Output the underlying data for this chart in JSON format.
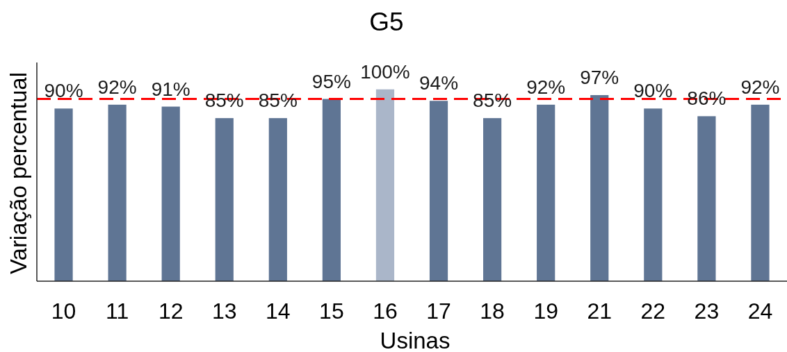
{
  "chart_data": {
    "type": "bar",
    "title": "G5",
    "xlabel": "Usinas",
    "ylabel": "Variação percentual",
    "categories": [
      "10",
      "11",
      "12",
      "13",
      "14",
      "15",
      "16",
      "17",
      "18",
      "19",
      "21",
      "22",
      "23",
      "24"
    ],
    "values": [
      90,
      92,
      91,
      85,
      85,
      95,
      100,
      94,
      85,
      92,
      97,
      90,
      86,
      92
    ],
    "colors": [
      "#5f7594",
      "#5f7594",
      "#5f7594",
      "#5f7594",
      "#5f7594",
      "#5f7594",
      "#aab6c9",
      "#5f7594",
      "#5f7594",
      "#5f7594",
      "#5f7594",
      "#5f7594",
      "#5f7594",
      "#5f7594"
    ],
    "value_labels": [
      "90%",
      "92%",
      "91%",
      "85%",
      "85%",
      "95%",
      "100%",
      "94%",
      "85%",
      "92%",
      "97%",
      "90%",
      "86%",
      "92%"
    ],
    "ylim": [
      0,
      114
    ],
    "tick_labels": "x",
    "ref_lines": [
      {
        "axis": "y",
        "value": 95,
        "color": "#ff0000",
        "line_style": "dashed"
      }
    ]
  }
}
